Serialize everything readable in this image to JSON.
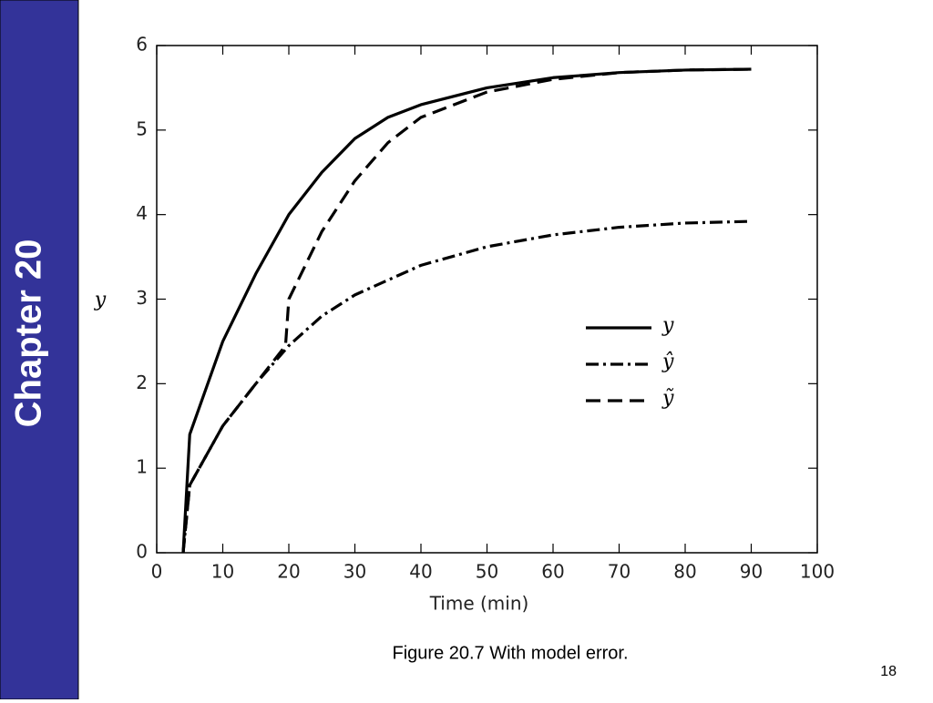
{
  "slide": {
    "sidebar": "Chapter 20",
    "caption": "Figure 20.7 With model error.",
    "page_number": "18"
  },
  "chart_data": {
    "type": "line",
    "xlabel": "Time (min)",
    "ylabel": "y",
    "xlim": [
      0,
      100
    ],
    "ylim": [
      0,
      6
    ],
    "xticks": [
      0,
      10,
      20,
      30,
      40,
      50,
      60,
      70,
      80,
      90,
      100
    ],
    "yticks": [
      0,
      1,
      2,
      3,
      4,
      5,
      6
    ],
    "legend": "right",
    "series": [
      {
        "name": "y",
        "color": "#000000",
        "linestyle": "solid",
        "x": [
          4,
          5,
          10,
          15,
          20,
          25,
          30,
          35,
          40,
          50,
          60,
          70,
          80,
          90
        ],
        "values": [
          0,
          1.4,
          2.5,
          3.3,
          4.0,
          4.5,
          4.9,
          5.15,
          5.3,
          5.5,
          5.62,
          5.68,
          5.71,
          5.72
        ]
      },
      {
        "name": "ŷ",
        "color": "#000000",
        "linestyle": "dashdot",
        "x": [
          4,
          5,
          10,
          15,
          20,
          25,
          30,
          40,
          50,
          60,
          70,
          80,
          90
        ],
        "values": [
          0,
          0.8,
          1.5,
          2.0,
          2.45,
          2.8,
          3.05,
          3.4,
          3.62,
          3.76,
          3.85,
          3.9,
          3.92
        ]
      },
      {
        "name": "ỹ",
        "color": "#000000",
        "linestyle": "dashed",
        "x": [
          4,
          5,
          10,
          15,
          19.5,
          20,
          25,
          30,
          35,
          40,
          50,
          60,
          70,
          80,
          90
        ],
        "values": [
          0,
          0.8,
          1.5,
          2.0,
          2.45,
          3.0,
          3.8,
          4.4,
          4.85,
          5.15,
          5.45,
          5.6,
          5.68,
          5.71,
          5.72
        ]
      }
    ]
  }
}
